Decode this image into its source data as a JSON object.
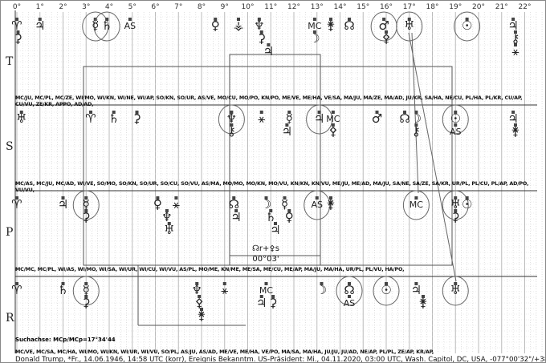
{
  "degree_labels": [
    "0°",
    "1°",
    "2°",
    "3°",
    "4°",
    "5°",
    "6°",
    "7°",
    "8°",
    "9°",
    "10°",
    "11°",
    "12°",
    "13°",
    "14°",
    "15°",
    "16°",
    "17°",
    "18°",
    "19°",
    "20°",
    "21°",
    "22°"
  ],
  "rows": [
    {
      "label": "T",
      "aspects": "",
      "glyphs": [
        {
          "s": "♈",
          "d": 0.0
        },
        {
          "s": "⚳",
          "d": 0.05
        },
        {
          "s": "♃",
          "d": 1.0
        },
        {
          "s": "☿",
          "d": 3.4,
          "circled": true
        },
        {
          "s": "♄",
          "d": 3.9,
          "circled": true
        },
        {
          "s": "AS",
          "d": 4.9
        },
        {
          "s": "♀",
          "d": 8.6
        },
        {
          "s": "⚶",
          "d": 9.6
        },
        {
          "s": "♆",
          "d": 10.5
        },
        {
          "s": "⚳",
          "d": 10.6
        },
        {
          "s": "♃",
          "d": 10.9
        },
        {
          "s": "MC",
          "d": 12.9
        },
        {
          "s": "☽",
          "d": 12.9
        },
        {
          "s": "⚵",
          "d": 13.6
        },
        {
          "s": "☊",
          "d": 14.4
        },
        {
          "s": "♂",
          "d": 15.9,
          "circled": true
        },
        {
          "s": "⚴",
          "d": 16.0
        },
        {
          "s": "♅",
          "d": 17.0,
          "circled": true
        },
        {
          "s": "☉",
          "d": 19.5,
          "circled": true
        },
        {
          "s": "♃",
          "d": 21.5
        },
        {
          "s": "⚷",
          "d": 21.6
        },
        {
          "s": "⚹",
          "d": 21.6
        }
      ]
    },
    {
      "label": "S",
      "aspects": "MC/JU, MC/PL, MC/ZE, WI/MO, WI/KN, WI/NE, WI/AP, SO/KN, SO/UR, AS/VE, MO/CU, MO/PO, KN/PO, ME/VE, ME/HA, VE/SA, MA/JU, MA/ZE, MA/AD, JU/KR, SA/HA, NE/CU, PL/HA, PL/KR, CU/AP, CU/VU, ZE/KR, APPO, AD/AD,",
      "glyphs": [
        {
          "s": "♅",
          "d": 0.2
        },
        {
          "s": "♈",
          "d": 3.2
        },
        {
          "s": "♄",
          "d": 4.2
        },
        {
          "s": "⚳",
          "d": 5.2
        },
        {
          "s": "♆",
          "d": 9.3,
          "circled": true
        },
        {
          "s": "⚷",
          "d": 9.3
        },
        {
          "s": "⚹",
          "d": 10.6
        },
        {
          "s": "☿",
          "d": 11.8
        },
        {
          "s": "♃",
          "d": 11.7
        },
        {
          "s": "♃",
          "d": 13.1,
          "circled": true
        },
        {
          "s": "MC",
          "d": 13.7
        },
        {
          "s": "⚴",
          "d": 13.7
        },
        {
          "s": "♂",
          "d": 15.6
        },
        {
          "s": "☊",
          "d": 16.8
        },
        {
          "s": "☽",
          "d": 17.3
        },
        {
          "s": "⚷",
          "d": 17.3
        },
        {
          "s": "☉",
          "d": 19.0,
          "circled": true
        },
        {
          "s": "AS",
          "d": 19.0
        },
        {
          "s": "♃",
          "d": 21.5
        },
        {
          "s": "⚵",
          "d": 21.6
        }
      ]
    },
    {
      "label": "P",
      "aspects": "MC/AS, MC/JU, MC/AD, WI/VE, SO/MO, SO/KN, SO/UR, SO/CU, SO/VU, AS/MA, MO/MO, MO/KN, MO/VU, KN/KN, KN/VU, ME/JU, ME/AD, MA/JU, SA/NE, SA/ZE, SA/KR, UR/PL, PL/CU, PL/AP, AD/PO, VU/VU,",
      "glyphs": [
        {
          "s": "♈",
          "d": 0.0
        },
        {
          "s": "♃",
          "d": 2.0
        },
        {
          "s": "☿",
          "d": 3.0,
          "circled": true
        },
        {
          "s": "⚳",
          "d": 3.0
        },
        {
          "s": "♀",
          "d": 6.1
        },
        {
          "s": "♆",
          "d": 6.5
        },
        {
          "s": "⚹",
          "d": 6.9
        },
        {
          "s": "♅",
          "d": 6.6
        },
        {
          "s": "☊",
          "d": 9.4
        },
        {
          "s": "♃",
          "d": 9.5
        },
        {
          "s": "☽",
          "d": 10.8
        },
        {
          "s": "♄",
          "d": 11.0
        },
        {
          "s": "♃",
          "d": 11.2
        },
        {
          "s": "☿",
          "d": 11.6
        },
        {
          "s": "♀",
          "d": 11.8
        },
        {
          "s": "AS",
          "d": 13.0,
          "circled": true
        },
        {
          "s": "⚵",
          "d": 13.6
        },
        {
          "s": "MC",
          "d": 17.3,
          "circled": true
        },
        {
          "s": "♅",
          "d": 19.0,
          "circled": true
        },
        {
          "s": "⚳",
          "d": 19.0
        },
        {
          "s": "☉",
          "d": 19.5
        }
      ]
    },
    {
      "label": "R",
      "aspects": "MC/MC, MC/PL, WI/AS, WI/MO, WI/SA, WI/UR, WI/CU, WI/VU, AS/PL, MO/ME, KN/ME, ME/SA, ME/CU, ME/AP, MA/JU, MA/HA, UR/PL, PL/VU, HA/PO,",
      "glyphs": [
        {
          "s": "♈",
          "d": 0.0
        },
        {
          "s": "♄",
          "d": 2.0
        },
        {
          "s": "☿",
          "d": 3.0,
          "circled": true
        },
        {
          "s": "⚳",
          "d": 3.0
        },
        {
          "s": "♆",
          "d": 7.8
        },
        {
          "s": "⚴",
          "d": 7.9
        },
        {
          "s": "⚹",
          "d": 9.0
        },
        {
          "s": "⚵",
          "d": 8.0
        },
        {
          "s": "MC",
          "d": 10.8
        },
        {
          "s": "♃",
          "d": 10.6
        },
        {
          "s": "⚳",
          "d": 11.1
        },
        {
          "s": "☽",
          "d": 13.2
        },
        {
          "s": "☊",
          "d": 14.4,
          "circled": true
        },
        {
          "s": "AS",
          "d": 14.4
        },
        {
          "s": "☉",
          "d": 16.0,
          "circled": true
        },
        {
          "s": "♃",
          "d": 17.3
        },
        {
          "s": "⚵",
          "d": 17.6
        },
        {
          "s": "♅",
          "d": 19.0,
          "circled": true
        }
      ]
    }
  ],
  "box_label_1": "☊r+⚴s",
  "box_label_2": "00°03'",
  "search_axis": "Suchachse: MCp/MCp=17°34'44",
  "bottom_aspects": "MC/VE, MC/SA, MC/HA, WI/MO, WI/KN, WI/UR, WI/VU, SO/PL, AS/JU, AS/AD, ME/VE, ME/HA, VE/PO, MA/SA, MA/HA, JU/JU, JU/AD, NE/AP, PL/PL, ZE/AP, KR/AP,",
  "footer": "Donald Trump, *Fr., 14.06.1946, 14:58 UTC (korr), Ereignis Bekanntm. US-Präsident: Mi., 04.11.2020, 03:00 UTC, Wash. Capitol, DC, USA, -077°00'32\"/+38°53'23\""
}
